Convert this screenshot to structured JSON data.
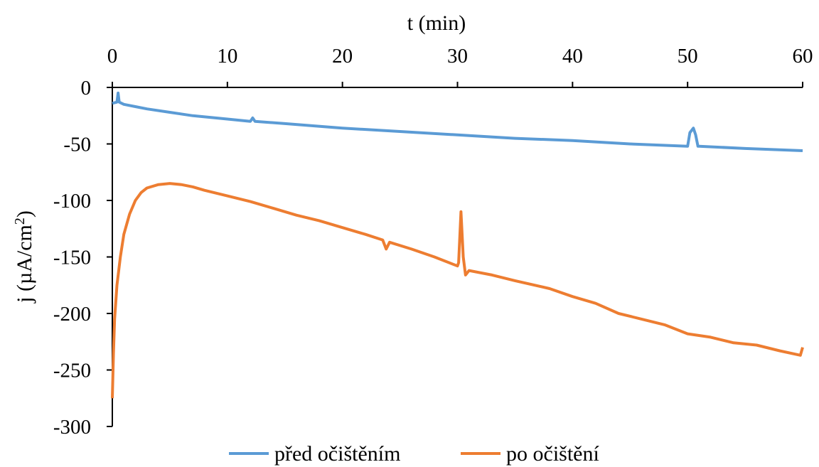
{
  "chart_data": {
    "type": "line",
    "xlabel": "t (min)",
    "ylabel": "j (µA/cm²)",
    "ylabel_base": "j (µA/cm",
    "ylabel_sup": "2",
    "ylabel_end": ")",
    "xlim": [
      0,
      60
    ],
    "ylim": [
      -300,
      0
    ],
    "x_ticks": [
      0,
      10,
      20,
      30,
      40,
      50,
      60
    ],
    "y_ticks": [
      0,
      -50,
      -100,
      -150,
      -200,
      -250,
      -300
    ],
    "x_tick_labels": [
      "0",
      "10",
      "20",
      "30",
      "40",
      "50",
      "60"
    ],
    "y_tick_labels": [
      "0",
      "-50",
      "-100",
      "-150",
      "-200",
      "-250",
      "-300"
    ],
    "x_axis_position": "top",
    "grid": false,
    "legend_position": "bottom",
    "series": [
      {
        "name": "před očištěním",
        "color": "#5B9BD5",
        "points": [
          [
            0,
            -14
          ],
          [
            0.4,
            -13
          ],
          [
            0.5,
            -5
          ],
          [
            0.6,
            -13
          ],
          [
            1,
            -15
          ],
          [
            2,
            -17
          ],
          [
            3,
            -19
          ],
          [
            5,
            -22
          ],
          [
            7,
            -25
          ],
          [
            10,
            -28
          ],
          [
            12,
            -30
          ],
          [
            12.2,
            -27
          ],
          [
            12.4,
            -30
          ],
          [
            15,
            -32
          ],
          [
            20,
            -36
          ],
          [
            25,
            -39
          ],
          [
            30,
            -42
          ],
          [
            35,
            -45
          ],
          [
            40,
            -47
          ],
          [
            45,
            -50
          ],
          [
            50,
            -52
          ],
          [
            50.2,
            -40
          ],
          [
            50.5,
            -36
          ],
          [
            50.7,
            -42
          ],
          [
            50.9,
            -52
          ],
          [
            51,
            -52
          ],
          [
            55,
            -54
          ],
          [
            60,
            -56
          ]
        ]
      },
      {
        "name": "po očištění",
        "color": "#ED7D31",
        "points": [
          [
            0,
            -275
          ],
          [
            0.1,
            -235
          ],
          [
            0.2,
            -205
          ],
          [
            0.4,
            -175
          ],
          [
            0.7,
            -150
          ],
          [
            1,
            -130
          ],
          [
            1.5,
            -112
          ],
          [
            2,
            -100
          ],
          [
            2.5,
            -93
          ],
          [
            3,
            -89
          ],
          [
            4,
            -86
          ],
          [
            5,
            -85
          ],
          [
            6,
            -86
          ],
          [
            7,
            -88
          ],
          [
            8,
            -91
          ],
          [
            10,
            -96
          ],
          [
            12,
            -101
          ],
          [
            14,
            -107
          ],
          [
            16,
            -113
          ],
          [
            18,
            -118
          ],
          [
            20,
            -124
          ],
          [
            22,
            -130
          ],
          [
            23.5,
            -135
          ],
          [
            23.8,
            -143
          ],
          [
            24.1,
            -137
          ],
          [
            26,
            -143
          ],
          [
            28,
            -150
          ],
          [
            30,
            -158
          ],
          [
            30.1,
            -155
          ],
          [
            30.3,
            -110
          ],
          [
            30.5,
            -150
          ],
          [
            30.7,
            -166
          ],
          [
            31,
            -162
          ],
          [
            33,
            -166
          ],
          [
            35,
            -171
          ],
          [
            38,
            -178
          ],
          [
            40,
            -185
          ],
          [
            42,
            -191
          ],
          [
            44,
            -200
          ],
          [
            46,
            -205
          ],
          [
            48,
            -210
          ],
          [
            50,
            -218
          ],
          [
            52,
            -221
          ],
          [
            54,
            -226
          ],
          [
            56,
            -228
          ],
          [
            58,
            -233
          ],
          [
            59.8,
            -237
          ],
          [
            60,
            -230
          ]
        ]
      }
    ]
  }
}
